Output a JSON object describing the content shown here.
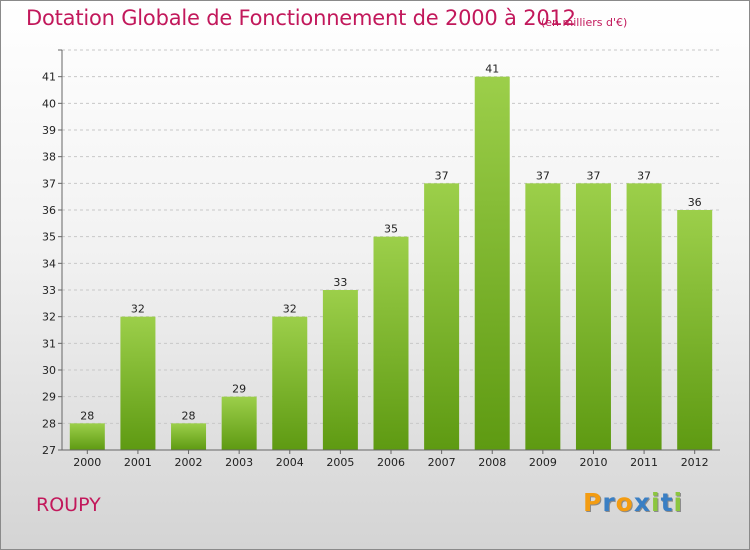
{
  "header": {
    "title": "Dotation Globale de Fonctionnement de 2000 à 2012",
    "subtitle": "(en milliers d'€)"
  },
  "footer": {
    "commune": "ROUPY",
    "logo_letters": [
      "P",
      "r",
      "o",
      "x",
      "i",
      "t",
      "i"
    ],
    "logo_colors": [
      "#f39c12",
      "#3a7fc4",
      "#f39c12",
      "#3a7fc4",
      "#8cc63f",
      "#3a7fc4",
      "#8cc63f"
    ]
  },
  "colors": {
    "bar_top": "#9ccf4a",
    "bar_bottom": "#5e9a12",
    "accent": "#c2185b"
  },
  "chart_data": {
    "type": "bar",
    "title": "Dotation Globale de Fonctionnement de 2000 à 2012",
    "subtitle": "(en milliers d'€)",
    "categories": [
      "2000",
      "2001",
      "2002",
      "2003",
      "2004",
      "2005",
      "2006",
      "2007",
      "2008",
      "2009",
      "2010",
      "2011",
      "2012"
    ],
    "values": [
      28,
      32,
      28,
      29,
      32,
      33,
      35,
      37,
      41,
      37,
      37,
      37,
      36
    ],
    "ylim": [
      27,
      42
    ],
    "yticks": [
      27,
      28,
      29,
      30,
      31,
      32,
      33,
      34,
      35,
      36,
      37,
      38,
      39,
      40,
      41,
      42
    ],
    "grid": true,
    "legend": false
  }
}
